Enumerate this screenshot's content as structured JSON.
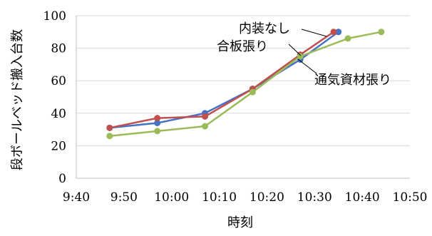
{
  "chart_data": {
    "type": "line",
    "xlabel": "時刻",
    "ylabel": "段ボールベッド搬入台数",
    "x_ticks": [
      "9:40",
      "9:50",
      "10:00",
      "10:10",
      "10:20",
      "10:30",
      "10:40",
      "10:50"
    ],
    "y_ticks": [
      "0",
      "20",
      "40",
      "60",
      "80",
      "100"
    ],
    "xlim": [
      "9:40",
      "10:50"
    ],
    "ylim": [
      0,
      100
    ],
    "grid": "horizontal",
    "legend": "none",
    "series": [
      {
        "name": "内装なし",
        "color": "#4472c4",
        "x": [
          "9:47",
          "9:57",
          "10:07",
          "10:17",
          "10:27",
          "10:35"
        ],
        "y": [
          31,
          34,
          40,
          55,
          73,
          90
        ]
      },
      {
        "name": "合板張り",
        "color": "#c0504d",
        "x": [
          "9:47",
          "9:57",
          "10:07",
          "10:17",
          "10:27",
          "10:34"
        ],
        "y": [
          31,
          37,
          38,
          55,
          76,
          90
        ]
      },
      {
        "name": "通気資材張り",
        "color": "#9bbb59",
        "x": [
          "9:47",
          "9:57",
          "10:07",
          "10:17",
          "10:27",
          "10:37",
          "10:44"
        ],
        "y": [
          26,
          29,
          32,
          53,
          75,
          86,
          90
        ]
      }
    ],
    "annotations": [
      "内装なし",
      "合板張り",
      "通気資材張り"
    ]
  }
}
